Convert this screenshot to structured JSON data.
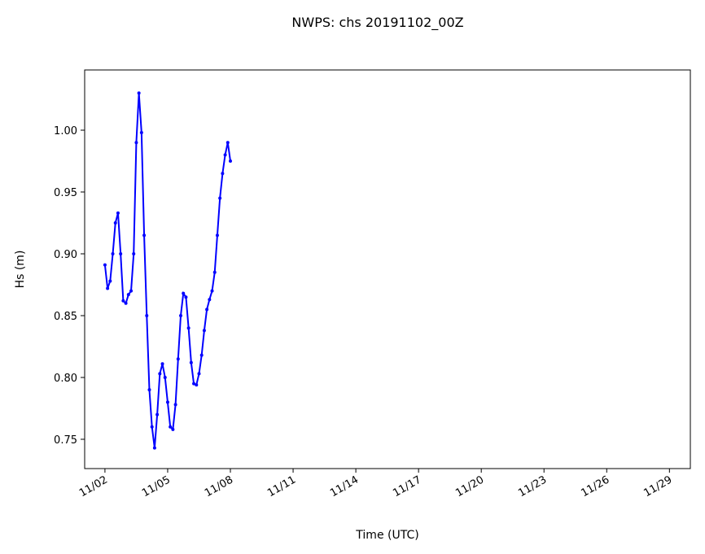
{
  "chart_data": {
    "type": "line",
    "title": "NWPS: chs 20191102_00Z",
    "xlabel": "Time (UTC)",
    "ylabel": "Hs (m)",
    "x": [
      0,
      0.125,
      0.25,
      0.375,
      0.5,
      0.625,
      0.75,
      0.875,
      1,
      1.125,
      1.25,
      1.375,
      1.5,
      1.625,
      1.75,
      1.875,
      2,
      2.125,
      2.25,
      2.375,
      2.5,
      2.625,
      2.75,
      2.875,
      3,
      3.125,
      3.25,
      3.375,
      3.5,
      3.625,
      3.75,
      3.875,
      4,
      4.125,
      4.25,
      4.375,
      4.5,
      4.625,
      4.75,
      4.875,
      5,
      5.125,
      5.25,
      5.375,
      5.5,
      5.625,
      5.75,
      5.875,
      6
    ],
    "series": [
      {
        "color": "#0000ff",
        "values": [
          0.891,
          0.872,
          0.878,
          0.9,
          0.925,
          0.933,
          0.9,
          0.862,
          0.86,
          0.867,
          0.87,
          0.9,
          0.99,
          1.03,
          0.998,
          0.915,
          0.85,
          0.79,
          0.76,
          0.743,
          0.77,
          0.803,
          0.811,
          0.8,
          0.78,
          0.76,
          0.758,
          0.778,
          0.815,
          0.85,
          0.868,
          0.865,
          0.84,
          0.812,
          0.795,
          0.794,
          0.803,
          0.818,
          0.838,
          0.855,
          0.863,
          0.87,
          0.885,
          0.915,
          0.945,
          0.965,
          0.98,
          0.99,
          0.975
        ]
      }
    ],
    "xlim": [
      -0.97,
      28.0
    ],
    "xticks": [
      {
        "value": 0,
        "label": "11/02"
      },
      {
        "value": 3,
        "label": "11/05"
      },
      {
        "value": 6,
        "label": "11/08"
      },
      {
        "value": 9,
        "label": "11/11"
      },
      {
        "value": 12,
        "label": "11/14"
      },
      {
        "value": 15,
        "label": "11/17"
      },
      {
        "value": 18,
        "label": "11/20"
      },
      {
        "value": 21,
        "label": "11/23"
      },
      {
        "value": 24,
        "label": "11/26"
      },
      {
        "value": 27,
        "label": "11/29"
      }
    ],
    "ylim": [
      0.7263,
      1.0487
    ],
    "yticks": [
      0.75,
      {
        "value": 0.8,
        "label": "0.80"
      },
      0.85,
      {
        "value": 0.9,
        "label": "0.90"
      },
      0.95,
      {
        "value": 1.0,
        "label": "1.00"
      }
    ],
    "grid": false
  }
}
